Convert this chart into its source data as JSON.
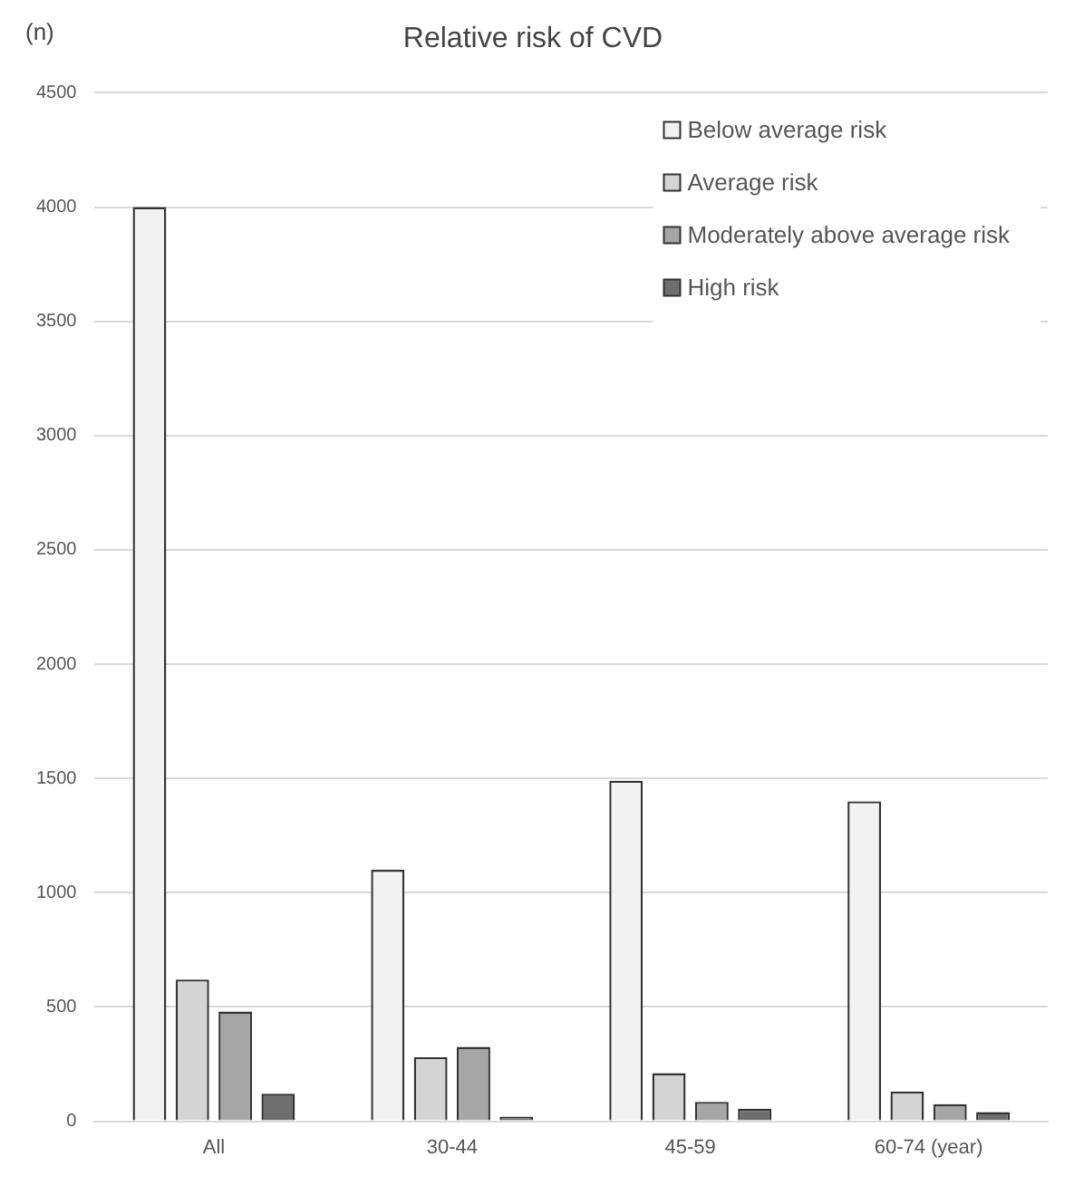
{
  "chart_data": {
    "type": "bar",
    "title": "Relative risk of CVD",
    "ylabel": "(n)",
    "categories": [
      "All",
      "30-44",
      "45-59",
      "60-74 (year)"
    ],
    "series": [
      {
        "name": "Below average risk",
        "color": "#f2f2f2",
        "values": [
          4000,
          1100,
          1490,
          1400
        ]
      },
      {
        "name": "Average risk",
        "color": "#d4d4d4",
        "values": [
          620,
          280,
          210,
          130
        ]
      },
      {
        "name": "Moderately above average risk",
        "color": "#a6a6a6",
        "values": [
          480,
          325,
          85,
          75
        ]
      },
      {
        "name": "High risk",
        "color": "#6e6e6e",
        "values": [
          120,
          20,
          55,
          40
        ]
      }
    ],
    "ylim": [
      0,
      4500
    ],
    "yticks": [
      0,
      500,
      1000,
      1500,
      2000,
      2500,
      3000,
      3500,
      4000,
      4500
    ],
    "grid": "y",
    "legend": "top right"
  }
}
